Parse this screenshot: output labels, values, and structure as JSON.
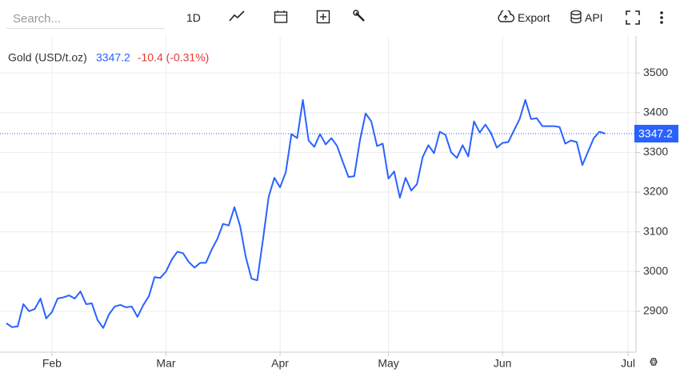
{
  "toolbar": {
    "search_placeholder": "Search...",
    "interval": "1D",
    "export": "Export",
    "api": "API"
  },
  "chart_data": {
    "type": "line",
    "title": "Gold (USD/t.oz)",
    "change_label": "-10.4 (-0.31%)",
    "change_color": "#e53935",
    "x": [
      0,
      1,
      2,
      3,
      4,
      5,
      6,
      7,
      8,
      9,
      10,
      11,
      12,
      13,
      14,
      15,
      16,
      17,
      18,
      19,
      20,
      21,
      22,
      23,
      24,
      25,
      26,
      27,
      28,
      29,
      30,
      31,
      32,
      33,
      34,
      35,
      36,
      37,
      38,
      39,
      40,
      41,
      42,
      43,
      44,
      45,
      46,
      47,
      48,
      49,
      50,
      51,
      52,
      53,
      54,
      55,
      56,
      57,
      58,
      59,
      60,
      61,
      62,
      63,
      64,
      65,
      66,
      67,
      68,
      69,
      70,
      71,
      72,
      73,
      74,
      75,
      76,
      77,
      78,
      79,
      80,
      81,
      82,
      83,
      84,
      85,
      86,
      87,
      88,
      89,
      90,
      91,
      92,
      93,
      94,
      95,
      96,
      97,
      98,
      99,
      100,
      101,
      102,
      103,
      104,
      105
    ],
    "series": [
      {
        "name": "Gold (USD/t.oz)",
        "color": "#2962ff",
        "values": [
          2870,
          2860,
          2862,
          2918,
          2900,
          2906,
          2932,
          2882,
          2898,
          2932,
          2935,
          2940,
          2932,
          2950,
          2918,
          2920,
          2878,
          2858,
          2892,
          2912,
          2916,
          2910,
          2912,
          2886,
          2915,
          2938,
          2986,
          2984,
          3000,
          3030,
          3050,
          3046,
          3024,
          3010,
          3022,
          3022,
          3055,
          3082,
          3120,
          3116,
          3162,
          3114,
          3036,
          2982,
          2978,
          3080,
          3188,
          3236,
          3212,
          3250,
          3346,
          3336,
          3432,
          3330,
          3314,
          3346,
          3320,
          3336,
          3316,
          3276,
          3238,
          3240,
          3330,
          3398,
          3378,
          3316,
          3322,
          3234,
          3252,
          3186,
          3236,
          3204,
          3220,
          3288,
          3318,
          3298,
          3352,
          3344,
          3300,
          3286,
          3318,
          3290,
          3378,
          3350,
          3370,
          3348,
          3312,
          3324,
          3326,
          3355,
          3384,
          3432,
          3384,
          3386,
          3366,
          3366,
          3366,
          3364,
          3322,
          3330,
          3326,
          3268,
          3302,
          3336,
          3352,
          3347.2
        ]
      }
    ],
    "xlim": [
      -1.1,
      110.4
    ],
    "xticks": [
      {
        "value": 8,
        "label": "Feb"
      },
      {
        "value": 28,
        "label": "Mar"
      },
      {
        "value": 48,
        "label": "Apr"
      },
      {
        "value": 67,
        "label": "May"
      },
      {
        "value": 87,
        "label": "Jun"
      },
      {
        "value": 109,
        "label": "Jul"
      }
    ],
    "ylim": [
      2797,
      3593
    ],
    "yticks": [
      2900,
      3000,
      3100,
      3200,
      3300,
      3400,
      3500
    ],
    "grid": true
  }
}
